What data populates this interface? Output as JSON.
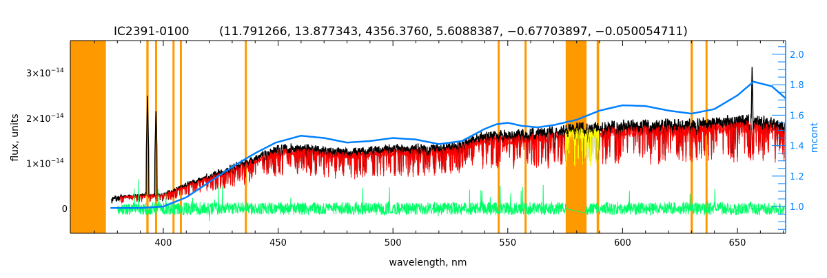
{
  "chart_data": {
    "type": "line",
    "title_object": "IC2391-0100",
    "title_params": "(11.791266, 13.877343, 4356.3760, 5.6088387, −0.67703897, −0.050054711)",
    "xlabel": "wavelength, nm",
    "ylabel": "flux, units",
    "y2label": "mcont",
    "xlim": [
      359.5,
      671
    ],
    "ylim": [
      -5.5e-15,
      3.72e-14
    ],
    "y2lim": [
      0.824,
      2.09
    ],
    "x_ticks": [
      400,
      450,
      500,
      550,
      600,
      650
    ],
    "x_tick_labels": [
      "400",
      "450",
      "500",
      "550",
      "600",
      "650"
    ],
    "y_ticks": [
      0,
      1e-14,
      2e-14,
      3e-14
    ],
    "y_tick_labels": [
      {
        "mant": "0",
        "exp": ""
      },
      {
        "mant": "1×10",
        "exp": "−14"
      },
      {
        "mant": "2×10",
        "exp": "−14"
      },
      {
        "mant": "3×10",
        "exp": "−14"
      }
    ],
    "y2_ticks": [
      1.0,
      1.2,
      1.4,
      1.6,
      1.8,
      2.0
    ],
    "y2_tick_labels": [
      "1.0",
      "1.2",
      "1.4",
      "1.6",
      "1.8",
      "2.0"
    ],
    "masked_regions_nm": [
      [
        359.5,
        375
      ],
      [
        392.6,
        393.6
      ],
      [
        396.4,
        397.2
      ],
      [
        404.0,
        404.8
      ],
      [
        407.2,
        408.0
      ],
      [
        435.5,
        436.3
      ],
      [
        545.6,
        546.5
      ],
      [
        557.3,
        558.2
      ],
      [
        575.2,
        584.3
      ],
      [
        588.7,
        589.8
      ],
      [
        629.6,
        630.6
      ],
      [
        636.1,
        637.0
      ]
    ],
    "observed_flux_envelope_1e-14": {
      "wavelength": [
        377,
        380,
        390,
        400,
        410,
        420,
        430,
        440,
        450,
        460,
        470,
        480,
        490,
        500,
        510,
        520,
        530,
        540,
        550,
        560,
        570,
        575,
        590,
        600,
        610,
        620,
        630,
        640,
        650,
        660,
        670
      ],
      "flux": [
        0.25,
        0.3,
        0.35,
        0.35,
        0.6,
        0.8,
        1.0,
        1.2,
        1.45,
        1.45,
        1.4,
        1.35,
        1.4,
        1.45,
        1.45,
        1.45,
        1.55,
        1.75,
        1.75,
        1.8,
        1.85,
        1.9,
        1.95,
        2.0,
        2.0,
        2.0,
        2.0,
        2.05,
        2.1,
        2.1,
        2.0
      ]
    },
    "emission_lines": [
      {
        "wavelength": 393.1,
        "flux_1e-14": 2.5
      },
      {
        "wavelength": 396.8,
        "flux_1e-14": 2.2
      },
      {
        "wavelength": 656.4,
        "flux_1e-14": 3.2
      }
    ],
    "mcont": {
      "wavelength": [
        377,
        380,
        390,
        400,
        410,
        420,
        430,
        440,
        449,
        460,
        470,
        480,
        490,
        500,
        510,
        520,
        530,
        540,
        545,
        550,
        556,
        563,
        570,
        580,
        590,
        600,
        610,
        620,
        630,
        640,
        650,
        657,
        665,
        671
      ],
      "value": [
        0.99,
        0.99,
        0.99,
        1.0,
        1.06,
        1.16,
        1.26,
        1.35,
        1.42,
        1.465,
        1.45,
        1.42,
        1.43,
        1.45,
        1.44,
        1.41,
        1.43,
        1.51,
        1.54,
        1.55,
        1.53,
        1.52,
        1.535,
        1.57,
        1.63,
        1.665,
        1.66,
        1.63,
        1.61,
        1.64,
        1.73,
        1.82,
        1.79,
        1.71
      ]
    },
    "series": [
      {
        "name": "observed",
        "color": "#000000"
      },
      {
        "name": "model",
        "color": "#ff0000"
      },
      {
        "name": "model (masked)",
        "color": "#ffff00"
      },
      {
        "name": "residuals",
        "color": "#00ff66"
      },
      {
        "name": "mcont",
        "color": "#0080ff"
      }
    ],
    "mask_color": "#ff9900",
    "axis2_color": "#0080ff"
  }
}
